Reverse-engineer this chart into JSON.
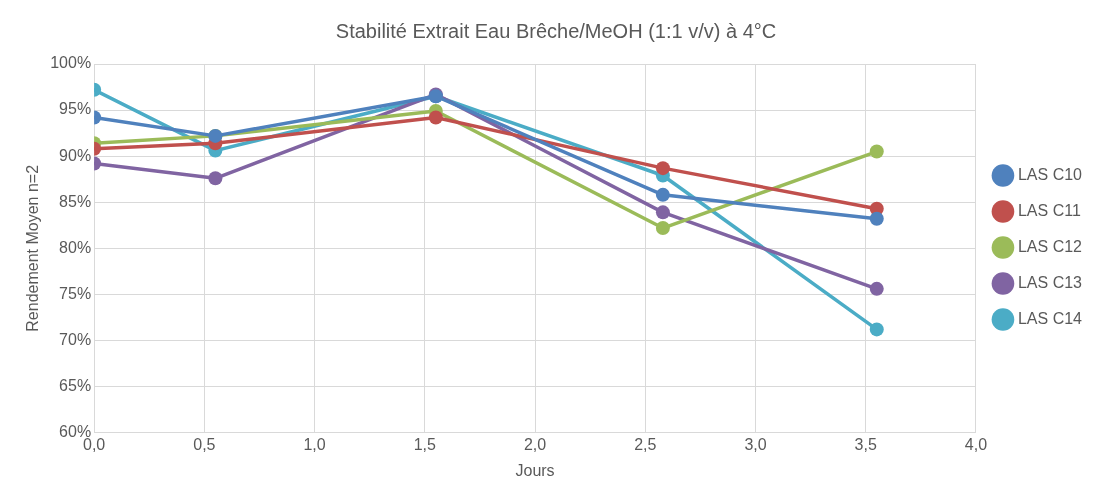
{
  "chart_data": {
    "type": "line",
    "title": "Stabilité Extrait Eau Brêche/MeOH (1:1 v/v) à 4°C",
    "xlabel": "Jours",
    "ylabel": "Rendement Moyen n=2",
    "x": [
      0,
      0.55,
      1.55,
      2.58,
      3.55
    ],
    "series": [
      {
        "name": "LAS C10",
        "color": "#4f81bd",
        "values": [
          94.2,
          92.2,
          96.5,
          85.8,
          83.2
        ]
      },
      {
        "name": "LAS C11",
        "color": "#c0504d",
        "values": [
          90.8,
          91.4,
          94.2,
          88.7,
          84.3
        ]
      },
      {
        "name": "LAS C12",
        "color": "#9bbb59",
        "values": [
          91.4,
          92.2,
          94.9,
          82.2,
          90.5
        ]
      },
      {
        "name": "LAS C13",
        "color": "#8064a2",
        "values": [
          89.2,
          87.6,
          96.7,
          83.9,
          75.6
        ]
      },
      {
        "name": "LAS C14",
        "color": "#4bacc6",
        "values": [
          97.2,
          90.6,
          96.5,
          87.9,
          71.2
        ]
      }
    ],
    "xlim": [
      0,
      4
    ],
    "xticks": [
      {
        "value": 0,
        "label": "0,0"
      },
      {
        "value": 0.5,
        "label": "0,5"
      },
      {
        "value": 1,
        "label": "1,0"
      },
      {
        "value": 1.5,
        "label": "1,5"
      },
      {
        "value": 2,
        "label": "2,0"
      },
      {
        "value": 2.5,
        "label": "2,5"
      },
      {
        "value": 3,
        "label": "3,0"
      },
      {
        "value": 3.5,
        "label": "3,5"
      },
      {
        "value": 4,
        "label": "4,0"
      }
    ],
    "ylim": [
      60,
      100
    ],
    "yticks": [
      {
        "value": 60,
        "label": "60%"
      },
      {
        "value": 65,
        "label": "65%"
      },
      {
        "value": 70,
        "label": "70%"
      },
      {
        "value": 75,
        "label": "75%"
      },
      {
        "value": 80,
        "label": "80%"
      },
      {
        "value": 85,
        "label": "85%"
      },
      {
        "value": 90,
        "label": "90%"
      },
      {
        "value": 95,
        "label": "95%"
      },
      {
        "value": 100,
        "label": "100%"
      }
    ],
    "grid": true,
    "legend": "right",
    "marker": "circle",
    "line_style": "solid"
  }
}
